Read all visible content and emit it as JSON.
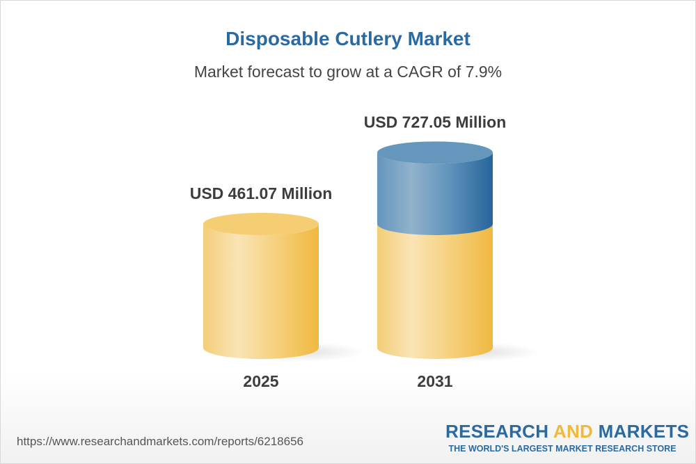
{
  "chart_data": {
    "type": "bar",
    "style": "3d-cylinder",
    "title": "Disposable Cutlery Market",
    "subtitle": "Market forecast to grow at a CAGR of 7.9%",
    "categories": [
      "2025",
      "2031"
    ],
    "values": [
      461.07,
      727.05
    ],
    "data_labels": [
      "USD 461.07 Million",
      "USD 727.05 Million"
    ],
    "unit": "USD Million",
    "colors": {
      "base": "#f3c552",
      "growth": "#2a6aa0"
    }
  },
  "footer": {
    "url": "https://www.researchandmarkets.com/reports/6218656",
    "logo_research": "RESEARCH",
    "logo_and": "AND",
    "logo_markets": "MARKETS",
    "logo_tagline": "THE WORLD'S LARGEST MARKET RESEARCH STORE"
  }
}
